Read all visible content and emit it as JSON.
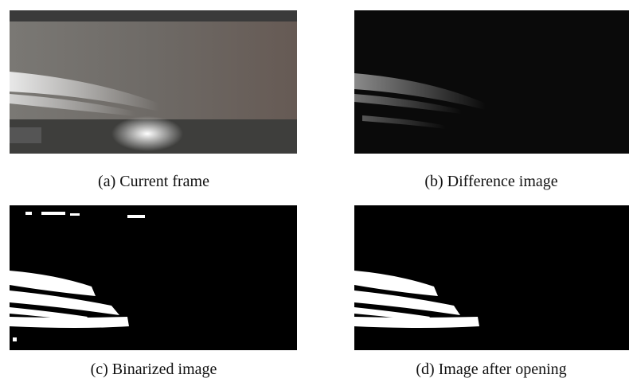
{
  "panels": [
    {
      "caption": "(a) Current frame"
    },
    {
      "caption": "(b) Difference image"
    },
    {
      "caption": "(c) Binarized image"
    },
    {
      "caption": "(d) Image after opening"
    }
  ]
}
